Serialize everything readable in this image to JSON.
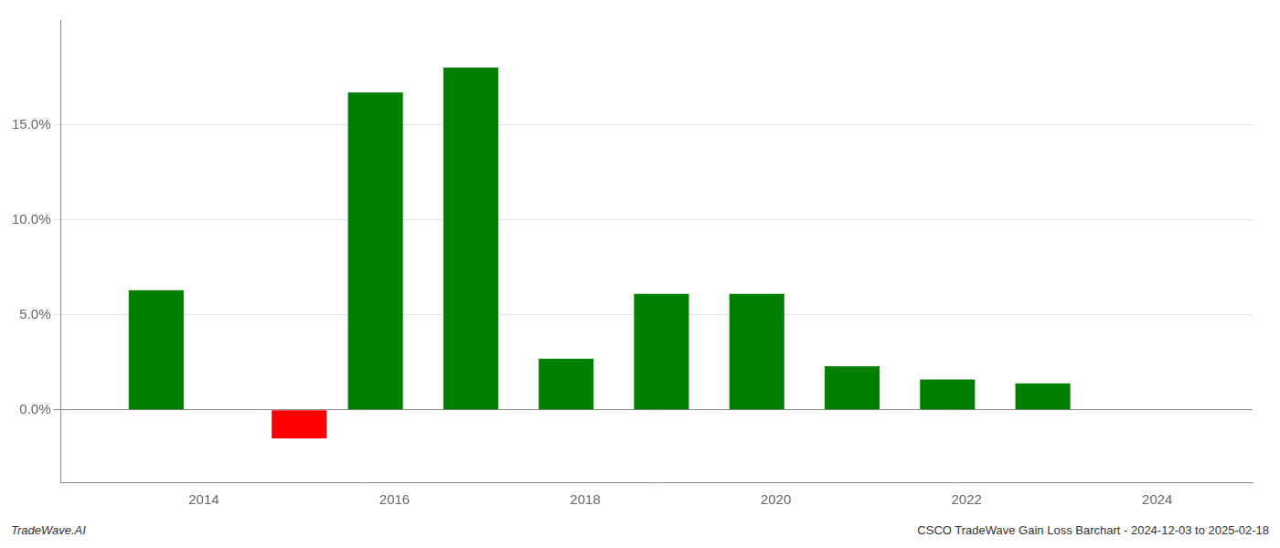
{
  "chart_data": {
    "type": "bar",
    "x": [
      2013.5,
      2015.0,
      2015.8,
      2016.8,
      2017.8,
      2018.8,
      2019.8,
      2020.8,
      2021.8,
      2022.8
    ],
    "values": [
      0.063,
      -0.015,
      0.167,
      0.18,
      0.027,
      0.061,
      0.061,
      0.023,
      0.016,
      0.014
    ],
    "colors": [
      "#008000",
      "#ff0000",
      "#008000",
      "#008000",
      "#008000",
      "#008000",
      "#008000",
      "#008000",
      "#008000",
      "#008000"
    ],
    "xlim": [
      2012.5,
      2025.0
    ],
    "xticks": [
      2014,
      2016,
      2018,
      2020,
      2022,
      2024
    ],
    "ylim": [
      -0.038,
      0.205
    ],
    "yticks": [
      {
        "value": 0.0,
        "label": "0.0%"
      },
      {
        "value": 0.05,
        "label": "5.0%"
      },
      {
        "value": 0.1,
        "label": "10.0%"
      },
      {
        "value": 0.15,
        "label": "15.0%"
      }
    ],
    "grid": true,
    "annotations": [
      "TradeWave.AI",
      "CSCO TradeWave Gain Loss Barchart - 2024-12-03 to 2025-02-18"
    ]
  }
}
